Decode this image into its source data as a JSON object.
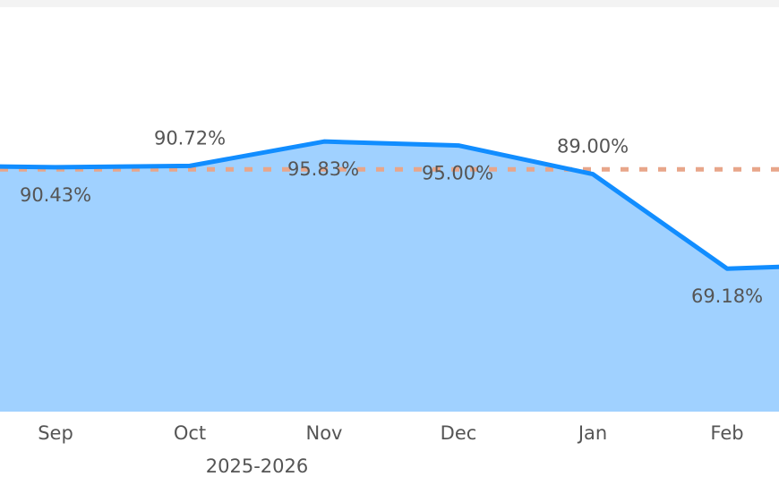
{
  "chart_data": {
    "type": "area",
    "x_label": "2025-2026",
    "categories": [
      null,
      "Sep",
      "Oct",
      "Nov",
      "Dec",
      "Jan",
      "Feb",
      null
    ],
    "values": [
      90.8,
      90.43,
      90.72,
      95.83,
      95.0,
      89.0,
      69.18,
      70.1
    ],
    "value_labels": [
      null,
      "90.43%",
      "90.72%",
      "95.83%",
      "95.00%",
      "89.00%",
      "69.18%",
      null
    ],
    "color": "#118dff",
    "fill": "#a0d1ff",
    "ylim": [
      39.2,
      125.5
    ],
    "reference_line": {
      "value": 90,
      "color": "#e8a68a"
    }
  }
}
